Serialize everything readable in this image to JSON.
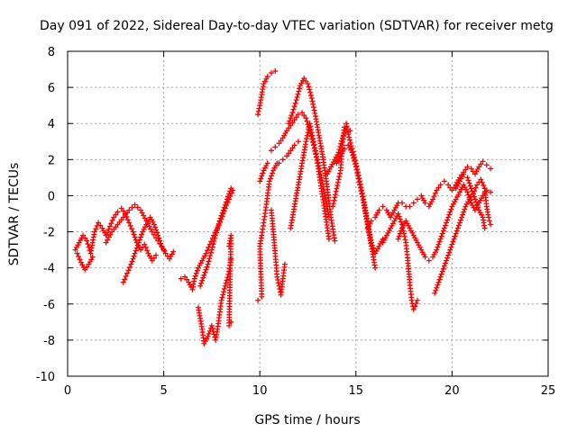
{
  "chart_data": {
    "type": "scatter",
    "title": "Day 091 of 2022, Sidereal Day-to-day VTEC variation (SDTVAR) for receiver metg",
    "xlabel": "GPS time / hours",
    "ylabel": "SDTVAR / TECUs",
    "xlim": [
      0,
      25
    ],
    "ylim": [
      -10,
      8
    ],
    "xticks": [
      0,
      5,
      10,
      15,
      20,
      25
    ],
    "yticks": [
      -10,
      -8,
      -6,
      -4,
      -2,
      0,
      2,
      4,
      6,
      8
    ],
    "grid": true,
    "marker": "+",
    "color": "#ff0000",
    "series": [
      {
        "name": "trace-1",
        "points": [
          [
            0.4,
            -3.0
          ],
          [
            0.6,
            -2.6
          ],
          [
            0.8,
            -2.2
          ],
          [
            1.0,
            -2.5
          ],
          [
            1.2,
            -3.2
          ],
          [
            1.4,
            -2.0
          ],
          [
            1.6,
            -1.5
          ],
          [
            1.8,
            -1.8
          ],
          [
            2.0,
            -2.2
          ],
          [
            2.2,
            -1.7
          ],
          [
            2.4,
            -1.2
          ],
          [
            2.6,
            -0.9
          ],
          [
            2.8,
            -0.7
          ],
          [
            3.0,
            -1.0
          ],
          [
            3.2,
            -1.5
          ],
          [
            3.4,
            -2.0
          ],
          [
            3.6,
            -2.6
          ],
          [
            3.8,
            -3.0
          ],
          [
            4.0,
            -2.7
          ],
          [
            4.2,
            -3.2
          ],
          [
            4.4,
            -3.6
          ],
          [
            4.6,
            -3.3
          ]
        ]
      },
      {
        "name": "trace-2",
        "points": [
          [
            0.5,
            -3.2
          ],
          [
            0.7,
            -3.7
          ],
          [
            0.9,
            -4.1
          ],
          [
            1.1,
            -3.8
          ],
          [
            1.3,
            -3.4
          ]
        ]
      },
      {
        "name": "trace-3",
        "points": [
          [
            2.9,
            -4.8
          ],
          [
            3.1,
            -4.3
          ],
          [
            3.3,
            -3.8
          ],
          [
            3.5,
            -3.2
          ],
          [
            3.7,
            -2.6
          ],
          [
            3.9,
            -2.0
          ],
          [
            4.1,
            -1.6
          ],
          [
            4.3,
            -1.2
          ],
          [
            4.5,
            -1.6
          ],
          [
            4.7,
            -2.2
          ],
          [
            4.9,
            -2.8
          ],
          [
            5.1,
            -3.2
          ],
          [
            5.3,
            -3.5
          ],
          [
            5.5,
            -3.1
          ]
        ]
      },
      {
        "name": "trace-4",
        "points": [
          [
            2.0,
            -2.6
          ],
          [
            2.3,
            -2.0
          ],
          [
            2.6,
            -1.6
          ],
          [
            2.9,
            -1.2
          ],
          [
            3.2,
            -0.8
          ],
          [
            3.5,
            -0.5
          ],
          [
            3.8,
            -0.8
          ],
          [
            4.1,
            -1.4
          ],
          [
            4.4,
            -2.0
          ],
          [
            4.7,
            -2.5
          ],
          [
            5.0,
            -3.0
          ]
        ]
      },
      {
        "name": "trace-5",
        "points": [
          [
            5.9,
            -4.6
          ],
          [
            6.1,
            -4.5
          ],
          [
            6.3,
            -4.8
          ],
          [
            6.5,
            -5.2
          ],
          [
            6.6,
            -4.6
          ],
          [
            6.8,
            -4.0
          ],
          [
            7.0,
            -3.6
          ],
          [
            7.2,
            -3.2
          ],
          [
            7.4,
            -2.7
          ],
          [
            7.6,
            -2.2
          ],
          [
            7.8,
            -1.8
          ],
          [
            8.0,
            -1.3
          ],
          [
            8.2,
            -0.7
          ],
          [
            8.4,
            -0.2
          ],
          [
            8.6,
            0.3
          ]
        ]
      },
      {
        "name": "trace-6",
        "points": [
          [
            6.8,
            -6.2
          ],
          [
            6.9,
            -6.8
          ],
          [
            7.0,
            -7.4
          ],
          [
            7.1,
            -8.2
          ],
          [
            7.3,
            -7.8
          ],
          [
            7.5,
            -7.2
          ],
          [
            7.7,
            -8.0
          ],
          [
            7.8,
            -7.4
          ],
          [
            7.9,
            -6.6
          ],
          [
            8.0,
            -5.8
          ],
          [
            8.2,
            -5.0
          ],
          [
            8.4,
            -4.2
          ],
          [
            8.5,
            -3.5
          ]
        ]
      },
      {
        "name": "trace-7",
        "points": [
          [
            6.9,
            -5.0
          ],
          [
            7.1,
            -4.4
          ],
          [
            7.3,
            -3.8
          ],
          [
            7.5,
            -3.0
          ],
          [
            7.7,
            -2.2
          ],
          [
            7.9,
            -1.4
          ],
          [
            8.1,
            -0.8
          ],
          [
            8.3,
            -0.2
          ],
          [
            8.5,
            0.4
          ]
        ]
      },
      {
        "name": "trace-8",
        "points": [
          [
            8.4,
            -2.8
          ],
          [
            8.5,
            -2.2
          ],
          [
            8.4,
            -7.2
          ],
          [
            8.5,
            -7.0
          ]
        ]
      },
      {
        "name": "trace-9",
        "points": [
          [
            9.9,
            4.5
          ],
          [
            10.0,
            5.0
          ],
          [
            10.1,
            5.6
          ],
          [
            10.2,
            6.2
          ],
          [
            10.4,
            6.6
          ],
          [
            10.6,
            6.8
          ],
          [
            10.8,
            6.9
          ]
        ]
      },
      {
        "name": "trace-10",
        "points": [
          [
            9.9,
            -5.8
          ],
          [
            10.1,
            -5.6
          ],
          [
            10.0,
            -2.8
          ],
          [
            10.1,
            -2.2
          ],
          [
            10.2,
            -1.5
          ],
          [
            10.3,
            -0.8
          ],
          [
            10.4,
            0.0
          ],
          [
            10.5,
            0.8
          ],
          [
            10.7,
            1.4
          ],
          [
            10.9,
            1.8
          ]
        ]
      },
      {
        "name": "trace-11",
        "points": [
          [
            10.0,
            0.8
          ],
          [
            10.2,
            1.4
          ],
          [
            10.4,
            1.8
          ]
        ]
      },
      {
        "name": "trace-12",
        "points": [
          [
            10.6,
            2.5
          ],
          [
            10.8,
            2.7
          ],
          [
            11.0,
            2.9
          ],
          [
            11.2,
            3.2
          ],
          [
            11.4,
            3.6
          ],
          [
            11.6,
            3.9
          ],
          [
            11.8,
            4.2
          ],
          [
            12.0,
            4.5
          ],
          [
            12.2,
            4.6
          ],
          [
            12.4,
            4.3
          ],
          [
            12.6,
            3.6
          ],
          [
            12.8,
            2.8
          ],
          [
            13.0,
            1.8
          ],
          [
            13.2,
            0.4
          ],
          [
            13.4,
            -1.0
          ],
          [
            13.6,
            -2.4
          ]
        ]
      },
      {
        "name": "trace-13",
        "points": [
          [
            11.5,
            4.0
          ],
          [
            11.7,
            4.6
          ],
          [
            11.9,
            5.3
          ],
          [
            12.1,
            6.1
          ],
          [
            12.3,
            6.5
          ],
          [
            12.5,
            6.2
          ],
          [
            12.7,
            5.4
          ],
          [
            12.9,
            4.4
          ],
          [
            13.1,
            3.2
          ],
          [
            13.3,
            2.0
          ],
          [
            13.5,
            0.5
          ],
          [
            13.7,
            -1.2
          ],
          [
            13.9,
            -2.5
          ]
        ]
      },
      {
        "name": "trace-14",
        "points": [
          [
            11.6,
            -1.8
          ],
          [
            11.8,
            -0.6
          ],
          [
            12.0,
            0.6
          ],
          [
            12.2,
            1.8
          ],
          [
            12.4,
            3.0
          ],
          [
            12.6,
            4.0
          ],
          [
            12.8,
            3.0
          ],
          [
            13.0,
            2.0
          ],
          [
            13.2,
            1.0
          ],
          [
            13.4,
            0.0
          ],
          [
            13.6,
            -1.2
          ]
        ]
      },
      {
        "name": "trace-15",
        "points": [
          [
            11.0,
            1.8
          ],
          [
            11.2,
            2.0
          ],
          [
            11.4,
            2.2
          ],
          [
            11.6,
            2.5
          ],
          [
            11.8,
            2.8
          ],
          [
            12.0,
            3.0
          ]
        ]
      },
      {
        "name": "trace-16",
        "points": [
          [
            10.6,
            -0.8
          ],
          [
            10.7,
            -2.0
          ],
          [
            10.8,
            -3.2
          ],
          [
            10.9,
            -4.5
          ],
          [
            11.1,
            -5.5
          ],
          [
            11.2,
            -4.6
          ],
          [
            11.3,
            -3.8
          ]
        ]
      },
      {
        "name": "trace-17",
        "points": [
          [
            13.8,
            -0.6
          ],
          [
            14.0,
            0.4
          ],
          [
            14.2,
            1.4
          ],
          [
            14.3,
            2.8
          ],
          [
            14.4,
            3.8
          ],
          [
            14.5,
            4.0
          ],
          [
            14.6,
            3.4
          ],
          [
            14.8,
            2.6
          ],
          [
            15.0,
            1.8
          ],
          [
            15.2,
            0.8
          ],
          [
            15.4,
            -0.2
          ],
          [
            15.6,
            -1.4
          ],
          [
            15.8,
            -2.6
          ],
          [
            16.0,
            -3.2
          ],
          [
            16.2,
            -2.8
          ],
          [
            16.4,
            -2.4
          ]
        ]
      },
      {
        "name": "trace-18",
        "points": [
          [
            14.0,
            1.8
          ],
          [
            14.2,
            2.2
          ],
          [
            14.4,
            2.6
          ],
          [
            14.6,
            2.8
          ],
          [
            14.8,
            2.4
          ],
          [
            15.0,
            1.6
          ],
          [
            15.2,
            0.6
          ],
          [
            15.4,
            -0.4
          ],
          [
            15.6,
            -1.6
          ],
          [
            15.8,
            -2.8
          ],
          [
            16.0,
            -4.0
          ]
        ]
      },
      {
        "name": "trace-19",
        "points": [
          [
            13.5,
            1.2
          ],
          [
            13.7,
            1.6
          ],
          [
            13.9,
            2.0
          ],
          [
            14.1,
            2.4
          ],
          [
            14.3,
            3.2
          ],
          [
            14.5,
            3.8
          ],
          [
            14.7,
            3.6
          ]
        ]
      },
      {
        "name": "trace-20",
        "points": [
          [
            15.6,
            -1.8
          ],
          [
            15.8,
            -1.4
          ],
          [
            16.0,
            -1.2
          ],
          [
            16.2,
            -0.8
          ],
          [
            16.4,
            -0.6
          ],
          [
            16.6,
            -0.8
          ],
          [
            16.8,
            -1.2
          ],
          [
            17.0,
            -0.8
          ],
          [
            17.2,
            -0.4
          ],
          [
            17.4,
            -0.4
          ],
          [
            17.6,
            -0.6
          ]
        ]
      },
      {
        "name": "trace-21",
        "points": [
          [
            16.4,
            -2.6
          ],
          [
            16.6,
            -2.2
          ],
          [
            16.8,
            -1.8
          ],
          [
            17.0,
            -1.4
          ],
          [
            17.2,
            -1.0
          ],
          [
            17.4,
            -1.6
          ],
          [
            17.6,
            -2.6
          ],
          [
            17.7,
            -3.6
          ],
          [
            17.8,
            -4.8
          ],
          [
            17.9,
            -5.8
          ],
          [
            18.0,
            -6.3
          ],
          [
            18.2,
            -5.8
          ]
        ]
      },
      {
        "name": "trace-22",
        "points": [
          [
            17.8,
            -0.6
          ],
          [
            18.0,
            -0.4
          ],
          [
            18.2,
            -0.2
          ],
          [
            18.4,
            0.0
          ],
          [
            18.6,
            -0.4
          ],
          [
            18.8,
            -0.6
          ],
          [
            19.0,
            -0.2
          ],
          [
            19.2,
            0.3
          ],
          [
            19.4,
            0.6
          ],
          [
            19.6,
            0.8
          ],
          [
            19.8,
            0.6
          ],
          [
            20.0,
            0.3
          ],
          [
            20.2,
            0.6
          ],
          [
            20.4,
            1.0
          ],
          [
            20.6,
            1.3
          ],
          [
            20.8,
            1.6
          ],
          [
            21.0,
            1.5
          ],
          [
            21.2,
            1.2
          ],
          [
            21.4,
            1.6
          ],
          [
            21.6,
            1.9
          ],
          [
            21.8,
            1.7
          ],
          [
            22.0,
            1.5
          ]
        ]
      },
      {
        "name": "trace-23",
        "points": [
          [
            17.2,
            -2.4
          ],
          [
            17.4,
            -1.8
          ],
          [
            17.6,
            -1.4
          ],
          [
            17.8,
            -1.8
          ],
          [
            18.0,
            -2.2
          ],
          [
            18.2,
            -2.6
          ],
          [
            18.4,
            -3.0
          ],
          [
            18.6,
            -3.4
          ],
          [
            18.8,
            -3.6
          ],
          [
            19.0,
            -3.4
          ],
          [
            19.2,
            -3.0
          ],
          [
            19.4,
            -2.4
          ],
          [
            19.6,
            -1.8
          ],
          [
            19.8,
            -1.2
          ],
          [
            20.0,
            -0.6
          ],
          [
            20.2,
            -0.2
          ],
          [
            20.4,
            0.2
          ],
          [
            20.6,
            0.6
          ],
          [
            20.8,
            0.2
          ],
          [
            21.0,
            -0.4
          ],
          [
            21.2,
            -0.8
          ],
          [
            21.4,
            -0.4
          ],
          [
            21.6,
            0.0
          ],
          [
            21.8,
            0.3
          ],
          [
            22.0,
            0.2
          ]
        ]
      },
      {
        "name": "trace-24",
        "points": [
          [
            19.1,
            -5.4
          ],
          [
            19.3,
            -4.8
          ],
          [
            19.5,
            -4.2
          ],
          [
            19.7,
            -3.6
          ],
          [
            19.9,
            -3.0
          ],
          [
            20.1,
            -2.4
          ],
          [
            20.3,
            -1.8
          ],
          [
            20.5,
            -1.2
          ],
          [
            20.7,
            -0.6
          ],
          [
            20.9,
            -0.2
          ],
          [
            21.1,
            0.1
          ],
          [
            21.3,
            0.6
          ],
          [
            21.5,
            0.9
          ],
          [
            21.7,
            0.4
          ],
          [
            21.8,
            -0.6
          ],
          [
            21.9,
            -1.2
          ],
          [
            22.0,
            -1.6
          ]
        ]
      },
      {
        "name": "trace-25",
        "points": [
          [
            20.2,
            0.4
          ],
          [
            20.4,
            0.8
          ],
          [
            20.6,
            1.2
          ],
          [
            20.8,
            1.0
          ],
          [
            21.0,
            0.4
          ],
          [
            21.2,
            -0.2
          ],
          [
            21.4,
            -0.8
          ],
          [
            21.6,
            -1.2
          ],
          [
            21.7,
            -1.8
          ]
        ]
      }
    ]
  }
}
